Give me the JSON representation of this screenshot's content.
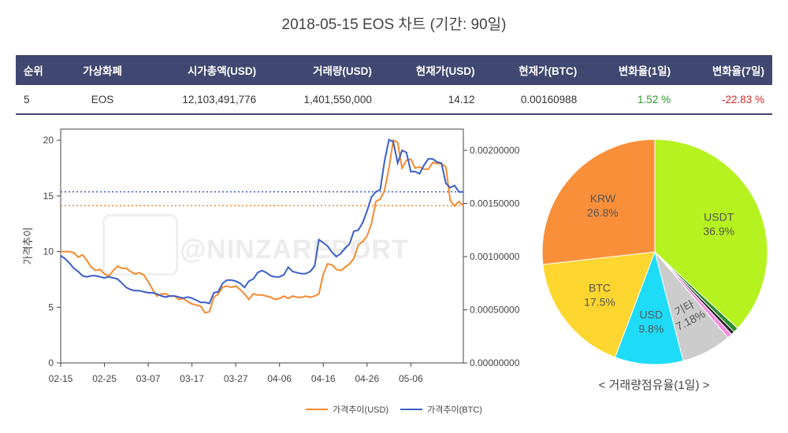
{
  "page": {
    "title": "2018-05-15 EOS 차트 (기간: 90일)"
  },
  "table": {
    "headers": [
      "순위",
      "가상화폐",
      "시가총액(USD)",
      "거래량(USD)",
      "현재가(USD)",
      "현재가(BTC)",
      "변화율(1일)",
      "변화율(7일)"
    ],
    "row": {
      "rank": "5",
      "name": "EOS",
      "market_cap": "12,103,491,776",
      "volume": "1,401,550,000",
      "price_usd": "14.12",
      "price_btc": "0.00160988",
      "change_1d": "1.52 %",
      "change_7d": "-22.83 %"
    }
  },
  "colors": {
    "header_bg": "#404770",
    "usd_line": "#f28a30",
    "btc_line": "#3b5fc7",
    "positive": "#2a9d2a",
    "negative": "#d22b2b"
  },
  "watermark": "@NINZAREPORT",
  "chart_data": [
    {
      "type": "line",
      "ylabel": "가격추이",
      "x_ticks": [
        "02-15",
        "02-25",
        "03-07",
        "03-17",
        "03-27",
        "04-06",
        "04-16",
        "04-26",
        "05-06"
      ],
      "y_left_ticks": [
        "0",
        "5",
        "10",
        "15",
        "20"
      ],
      "y_right_ticks": [
        "0.00000000",
        "0.00050000",
        "0.00100000",
        "0.00150000",
        "0.00200000"
      ],
      "ylim_left": [
        0,
        21
      ],
      "ylim_right": [
        0,
        0.0022
      ],
      "reference_lines": [
        {
          "series": "가격추이(USD)",
          "value": 14.12
        },
        {
          "series": "가격추이(BTC)",
          "value": 0.00160988
        }
      ],
      "legend_position": "bottom",
      "series": [
        {
          "name": "가격추이(USD)",
          "axis": "left",
          "values": [
            10.0,
            10.0,
            10.0,
            9.9,
            9.5,
            9.7,
            9.2,
            8.6,
            8.3,
            8.4,
            8.0,
            7.8,
            8.3,
            8.7,
            8.5,
            8.5,
            8.2,
            8.0,
            8.1,
            7.9,
            7.3,
            6.6,
            6.0,
            6.2,
            6.2,
            6.0,
            6.0,
            5.7,
            5.8,
            5.5,
            5.3,
            5.2,
            5.1,
            4.5,
            4.6,
            5.9,
            6.2,
            6.8,
            6.9,
            6.8,
            6.9,
            6.6,
            6.2,
            5.7,
            6.2,
            6.1,
            6.1,
            6.0,
            5.9,
            5.7,
            5.8,
            6.0,
            5.8,
            6.0,
            5.9,
            5.9,
            6.0,
            5.9,
            6.0,
            6.2,
            8.0,
            8.9,
            8.8,
            8.4,
            8.3,
            8.6,
            8.9,
            9.4,
            10.6,
            10.9,
            11.4,
            12.5,
            14.5,
            14.7,
            15.5,
            17.5,
            20.0,
            19.8,
            17.5,
            18.2,
            18.3,
            17.5,
            17.6,
            17.4,
            17.4,
            18.0,
            17.9,
            17.9,
            17.6,
            14.6,
            14.1,
            14.5,
            14.12
          ]
        },
        {
          "name": "가격추이(BTC)",
          "axis": "right",
          "values": [
            0.00101,
            0.00098,
            0.00094,
            0.00089,
            0.00086,
            0.00082,
            0.00081,
            0.00082,
            0.00082,
            0.00081,
            0.0008,
            0.00081,
            0.0008,
            0.00079,
            0.00075,
            0.00071,
            0.00069,
            0.00068,
            0.00068,
            0.00067,
            0.00066,
            0.00066,
            0.00065,
            0.00063,
            0.00062,
            0.00063,
            0.00063,
            0.00062,
            0.00061,
            0.00062,
            0.00061,
            0.00059,
            0.00057,
            0.00057,
            0.00056,
            0.00066,
            0.00067,
            0.00075,
            0.00078,
            0.00078,
            0.00077,
            0.00075,
            0.00071,
            0.00077,
            0.00079,
            0.00085,
            0.00087,
            0.00085,
            0.00082,
            0.00081,
            0.00081,
            0.00083,
            0.0009,
            0.00086,
            0.00085,
            0.00084,
            0.00084,
            0.00086,
            0.00091,
            0.00116,
            0.00113,
            0.0011,
            0.00104,
            0.001,
            0.00103,
            0.00108,
            0.00112,
            0.00124,
            0.00125,
            0.00132,
            0.00143,
            0.00156,
            0.00161,
            0.00163,
            0.0019,
            0.0021,
            0.00208,
            0.00188,
            0.002,
            0.00198,
            0.0018,
            0.0018,
            0.00178,
            0.00186,
            0.00192,
            0.00192,
            0.00189,
            0.00188,
            0.00169,
            0.00165,
            0.00167,
            0.00161,
            0.00160988
          ]
        }
      ]
    },
    {
      "type": "pie",
      "title": "< 거래량점유율(1일) >",
      "slices": [
        {
          "label": "USDT",
          "value": 36.9,
          "display": "36.9%",
          "color": "#b5f21f"
        },
        {
          "label": "",
          "value": 0.7,
          "display": "",
          "color": "#2c8c2c"
        },
        {
          "label": "",
          "value": 0.5,
          "display": "",
          "color": "#2a2a2a"
        },
        {
          "label": "",
          "value": 0.7,
          "display": "",
          "color": "#f58ee0"
        },
        {
          "label": "기타",
          "value": 7.18,
          "display": "7.18%",
          "color": "#cccccc"
        },
        {
          "label": "USD",
          "value": 9.8,
          "display": "9.8%",
          "color": "#1edcf8"
        },
        {
          "label": "BTC",
          "value": 17.5,
          "display": "17.5%",
          "color": "#fdd630"
        },
        {
          "label": "KRW",
          "value": 26.8,
          "display": "26.8%",
          "color": "#fa8f3a"
        }
      ]
    }
  ]
}
